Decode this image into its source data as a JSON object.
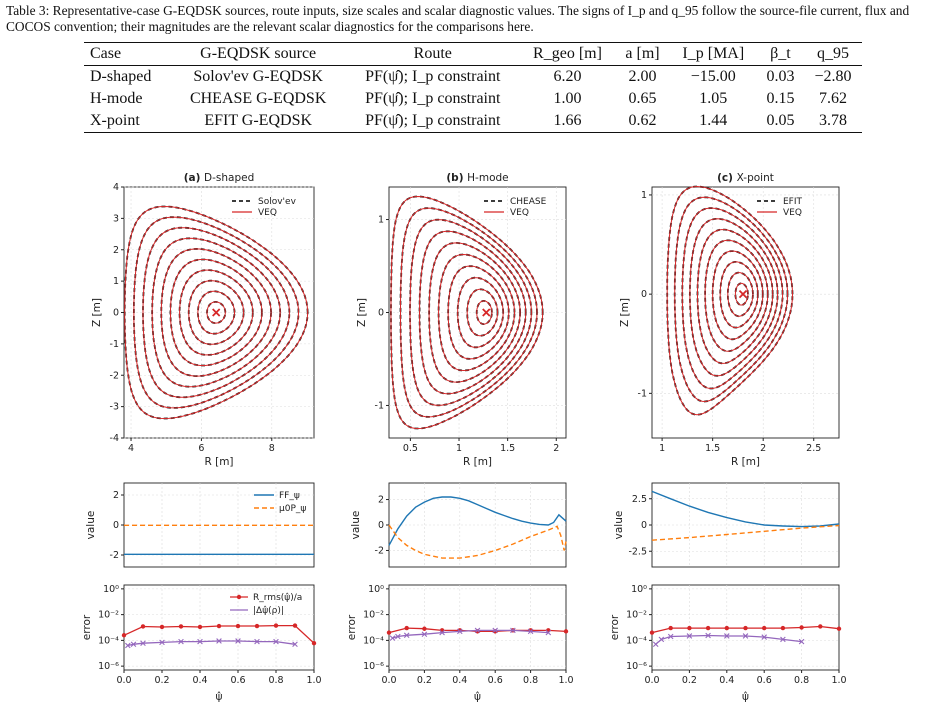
{
  "caption": "Table 3: Representative-case G-EQDSK sources, route inputs, size scales and scalar diagnostic values. The signs of I_p and q_95 follow the source-file current, flux and COCOS convention; their magnitudes are the relevant scalar diagnostics for the comparisons here.",
  "table": {
    "headers": [
      "Case",
      "G-EQDSK source",
      "Route",
      "R_geo [m]",
      "a [m]",
      "I_p [MA]",
      "β_t",
      "q_95"
    ],
    "rows": [
      [
        "D-shaped",
        "Solov'ev G-EQDSK",
        "PF(ψ̂); I_p constraint",
        "6.20",
        "2.00",
        "−15.00",
        "0.03",
        "−2.80"
      ],
      [
        "H-mode",
        "CHEASE G-EQDSK",
        "PF(ψ̂); I_p constraint",
        "1.00",
        "0.65",
        "1.05",
        "0.15",
        "7.62"
      ],
      [
        "X-point",
        "EFIT G-EQDSK",
        "PF(ψ̂); I_p constraint",
        "1.66",
        "0.62",
        "1.44",
        "0.05",
        "3.78"
      ]
    ]
  },
  "colors": {
    "reference": "#222222",
    "veq": "#d62728",
    "ff": "#1f77b4",
    "p": "#ff7f0e",
    "rms": "#d62728",
    "dpsi": "#9467bd"
  },
  "panels": [
    {
      "tag": "(a)",
      "title": "D-shaped",
      "flux": {
        "xlabel": "R [m]",
        "ylabel": "Z [m]",
        "xlim": [
          3.8,
          9.2
        ],
        "ylim": [
          -4,
          4
        ],
        "xticks": [
          4,
          6,
          8
        ],
        "yticks": [
          4,
          3,
          2,
          1,
          0,
          -1,
          -2,
          -3,
          -4
        ],
        "legend": [
          "Solov'ev",
          "VEQ"
        ],
        "axis": [
          6.42,
          0.0
        ],
        "shape": {
          "R0": 6.42,
          "a": 2.6,
          "kappa": 1.3,
          "delta": 0.6,
          "n": 10,
          "xpoint": false
        }
      },
      "profile": {
        "ylabel": "value",
        "ylim": [
          -2.8,
          2.8
        ],
        "yticks": [
          2,
          0,
          -2
        ],
        "legend": [
          "FF_ψ",
          "μ0P_ψ"
        ],
        "ff": [
          [
            0,
            -1.95
          ],
          [
            1,
            -1.95
          ]
        ],
        "p": [
          [
            0,
            -0.02
          ],
          [
            1,
            -0.02
          ]
        ]
      },
      "error": {
        "ylabel": "error",
        "xlabel": "ψ̂",
        "legend": [
          "R_rms(ψ̂)/a",
          "|Δψ̂(ρ)|"
        ],
        "rms": [
          [
            0.0,
            0.00025
          ],
          [
            0.1,
            0.0012
          ],
          [
            0.2,
            0.0011
          ],
          [
            0.3,
            0.0012
          ],
          [
            0.4,
            0.0011
          ],
          [
            0.5,
            0.0013
          ],
          [
            0.6,
            0.0013
          ],
          [
            0.7,
            0.0013
          ],
          [
            0.8,
            0.0014
          ],
          [
            0.9,
            0.0014
          ],
          [
            1.0,
            6e-05
          ]
        ],
        "dpsi": [
          [
            0.02,
            4e-05
          ],
          [
            0.05,
            5e-05
          ],
          [
            0.1,
            6e-05
          ],
          [
            0.2,
            7e-05
          ],
          [
            0.3,
            8e-05
          ],
          [
            0.4,
            8e-05
          ],
          [
            0.5,
            9e-05
          ],
          [
            0.6,
            9e-05
          ],
          [
            0.7,
            8e-05
          ],
          [
            0.8,
            8e-05
          ],
          [
            0.9,
            5e-05
          ]
        ]
      }
    },
    {
      "tag": "(b)",
      "title": "H-mode",
      "flux": {
        "xlabel": "R [m]",
        "ylabel": "Z [m]",
        "xlim": [
          0.28,
          2.1
        ],
        "ylim": [
          -1.35,
          1.35
        ],
        "xticks": [
          0.5,
          1.0,
          1.5,
          2.0
        ],
        "yticks": [
          1,
          0,
          -1
        ],
        "legend": [
          "CHEASE",
          "VEQ"
        ],
        "axis": [
          1.28,
          0.0
        ],
        "shape": {
          "R0": 1.08,
          "a": 0.78,
          "kappa": 1.6,
          "delta": 0.7,
          "n": 10,
          "xpoint": false
        }
      },
      "profile": {
        "ylabel": "value",
        "ylim": [
          -3.3,
          3.3
        ],
        "yticks": [
          2,
          0,
          -2
        ],
        "legend": [
          "",
          ""
        ],
        "ff": [
          [
            0,
            -1.6
          ],
          [
            0.05,
            -0.3
          ],
          [
            0.1,
            0.7
          ],
          [
            0.15,
            1.4
          ],
          [
            0.2,
            1.8
          ],
          [
            0.25,
            2.1
          ],
          [
            0.3,
            2.2
          ],
          [
            0.35,
            2.2
          ],
          [
            0.4,
            2.1
          ],
          [
            0.45,
            1.9
          ],
          [
            0.5,
            1.6
          ],
          [
            0.55,
            1.3
          ],
          [
            0.6,
            1.0
          ],
          [
            0.65,
            0.75
          ],
          [
            0.7,
            0.5
          ],
          [
            0.75,
            0.3
          ],
          [
            0.8,
            0.15
          ],
          [
            0.85,
            0.05
          ],
          [
            0.9,
            0.0
          ],
          [
            0.93,
            0.2
          ],
          [
            0.96,
            0.8
          ],
          [
            1.0,
            0.3
          ]
        ],
        "p": [
          [
            0,
            0.0
          ],
          [
            0.05,
            -1.0
          ],
          [
            0.1,
            -1.6
          ],
          [
            0.15,
            -2.0
          ],
          [
            0.2,
            -2.3
          ],
          [
            0.3,
            -2.6
          ],
          [
            0.4,
            -2.6
          ],
          [
            0.5,
            -2.4
          ],
          [
            0.6,
            -2.0
          ],
          [
            0.7,
            -1.5
          ],
          [
            0.8,
            -0.9
          ],
          [
            0.9,
            -0.4
          ],
          [
            0.95,
            -0.1
          ],
          [
            0.97,
            -0.8
          ],
          [
            0.99,
            -2.0
          ],
          [
            1.0,
            -1.3
          ]
        ]
      },
      "error": {
        "ylabel": "error",
        "xlabel": "ψ̂",
        "legend": [
          "",
          ""
        ],
        "rms": [
          [
            0.0,
            0.0004
          ],
          [
            0.1,
            0.0009
          ],
          [
            0.2,
            0.0008
          ],
          [
            0.3,
            0.0006
          ],
          [
            0.4,
            0.0006
          ],
          [
            0.5,
            0.0005
          ],
          [
            0.6,
            0.0005
          ],
          [
            0.7,
            0.0006
          ],
          [
            0.8,
            0.0006
          ],
          [
            0.9,
            0.0006
          ],
          [
            1.0,
            0.0005
          ]
        ],
        "dpsi": [
          [
            0.02,
            0.00015
          ],
          [
            0.05,
            0.0002
          ],
          [
            0.1,
            0.00025
          ],
          [
            0.2,
            0.0003
          ],
          [
            0.3,
            0.0004
          ],
          [
            0.4,
            0.0005
          ],
          [
            0.5,
            0.0006
          ],
          [
            0.6,
            0.0006
          ],
          [
            0.7,
            0.0006
          ],
          [
            0.8,
            0.0005
          ],
          [
            0.9,
            0.0004
          ]
        ]
      }
    },
    {
      "tag": "(c)",
      "title": "X-point",
      "flux": {
        "xlabel": "R [m]",
        "ylabel": "Z [m]",
        "xlim": [
          0.9,
          2.75
        ],
        "ylim": [
          -1.45,
          1.08
        ],
        "xticks": [
          1.0,
          1.5,
          2.0,
          2.5
        ],
        "yticks": [
          1,
          0,
          -1
        ],
        "legend": [
          "EFIT",
          "VEQ"
        ],
        "axis": [
          1.8,
          0.0
        ],
        "shape": {
          "R0": 1.67,
          "a": 0.62,
          "kappa": 1.75,
          "delta": 0.55,
          "n": 10,
          "xpoint": true
        }
      },
      "profile": {
        "ylabel": "value",
        "ylim": [
          -4,
          4
        ],
        "yticks": [
          2.5,
          0.0,
          -2.5
        ],
        "legend": [
          "",
          ""
        ],
        "ff": [
          [
            0,
            3.2
          ],
          [
            0.1,
            2.5
          ],
          [
            0.2,
            1.8
          ],
          [
            0.3,
            1.2
          ],
          [
            0.4,
            0.7
          ],
          [
            0.5,
            0.3
          ],
          [
            0.6,
            0.0
          ],
          [
            0.7,
            -0.1
          ],
          [
            0.8,
            -0.15
          ],
          [
            0.9,
            -0.1
          ],
          [
            1.0,
            0.1
          ]
        ],
        "p": [
          [
            0,
            -1.45
          ],
          [
            0.2,
            -1.2
          ],
          [
            0.4,
            -0.9
          ],
          [
            0.6,
            -0.6
          ],
          [
            0.8,
            -0.3
          ],
          [
            1.0,
            -0.05
          ]
        ]
      },
      "error": {
        "ylabel": "error",
        "xlabel": "ψ̂",
        "legend": [
          "",
          ""
        ],
        "rms": [
          [
            0.0,
            0.0004
          ],
          [
            0.1,
            0.0009
          ],
          [
            0.2,
            0.0009
          ],
          [
            0.3,
            0.0009
          ],
          [
            0.4,
            0.0009
          ],
          [
            0.5,
            0.0009
          ],
          [
            0.6,
            0.0009
          ],
          [
            0.7,
            0.0009
          ],
          [
            0.8,
            0.001
          ],
          [
            0.9,
            0.0012
          ],
          [
            1.0,
            0.0008
          ]
        ],
        "dpsi": [
          [
            0.02,
            5e-05
          ],
          [
            0.05,
            0.00012
          ],
          [
            0.1,
            0.0002
          ],
          [
            0.2,
            0.00022
          ],
          [
            0.3,
            0.00024
          ],
          [
            0.4,
            0.00022
          ],
          [
            0.5,
            0.00022
          ],
          [
            0.6,
            0.00018
          ],
          [
            0.7,
            0.00012
          ],
          [
            0.8,
            8e-05
          ]
        ]
      }
    }
  ],
  "shared": {
    "error_yticks": [
      "10⁰",
      "10⁻²",
      "10⁻⁴",
      "10⁻⁶"
    ],
    "error_xticks": [
      "0.0",
      "0.2",
      "0.4",
      "0.6",
      "0.8",
      "1.0"
    ]
  }
}
